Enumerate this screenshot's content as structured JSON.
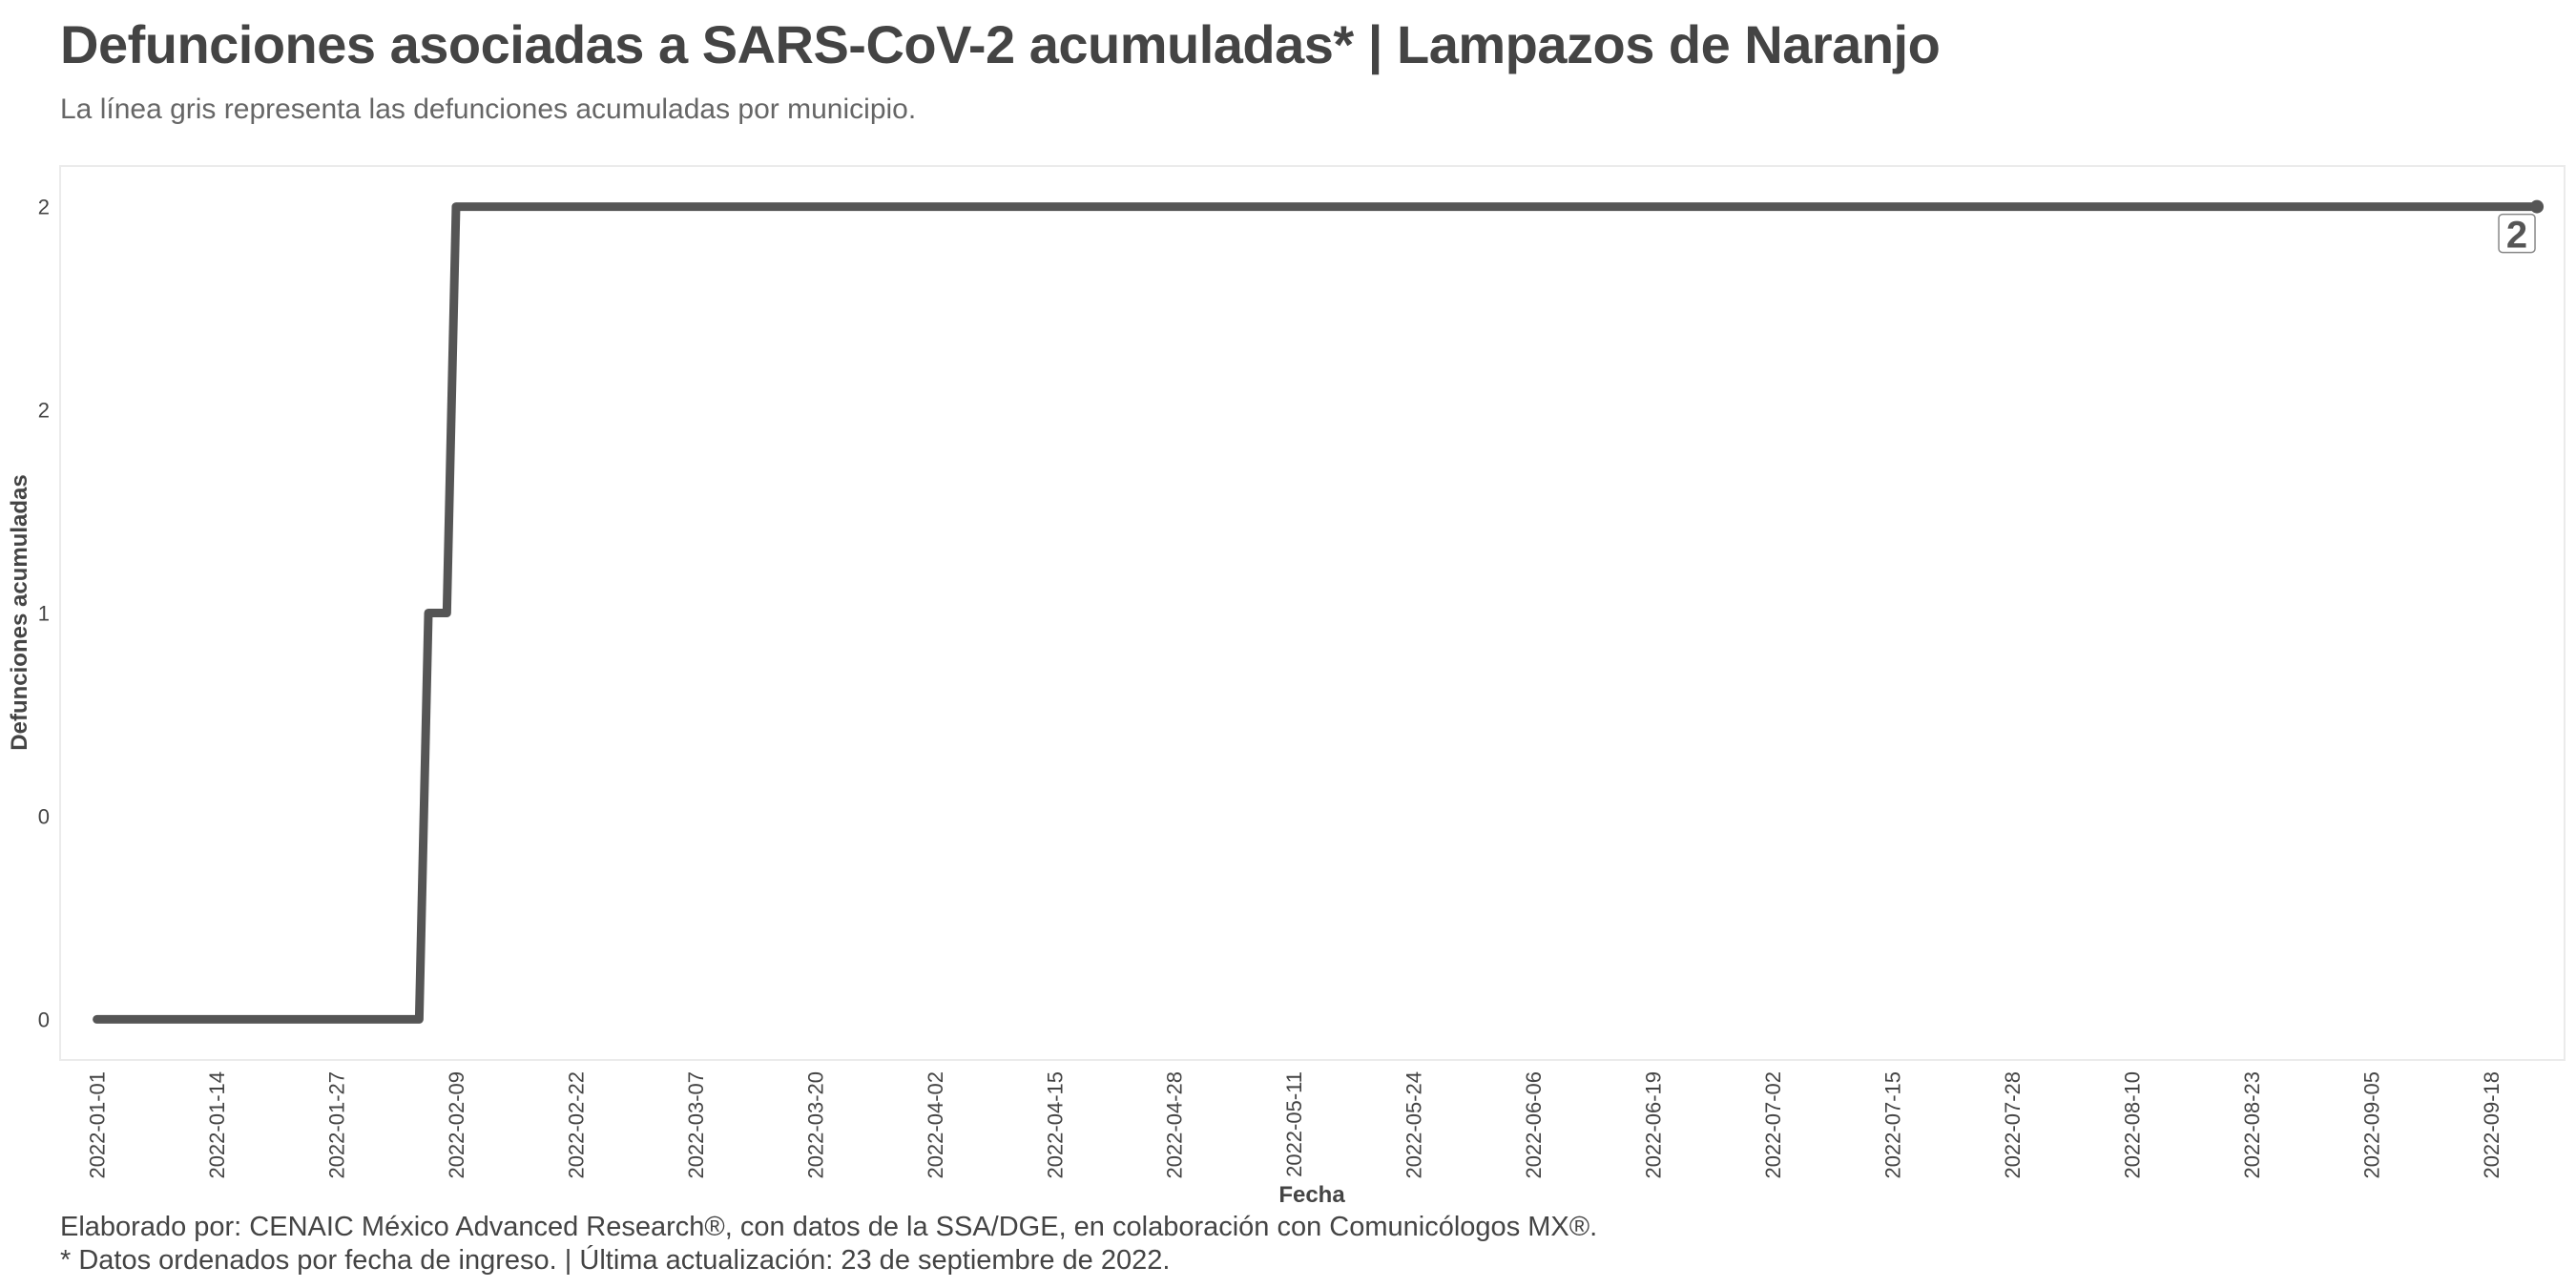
{
  "header": {
    "title": "Defunciones asociadas a SARS-CoV-2 acumuladas* | Lampazos de Naranjo",
    "subtitle": "La línea gris representa las defunciones acumuladas por municipio."
  },
  "footer": {
    "line1": "Elaborado por: CENAIC México Advanced Research®, con datos de la SSA/DGE, en colaboración con Comunicólogos MX®.",
    "line2": "* Datos ordenados por fecha de ingreso. | Última actualización: 23 de septiembre de 2022."
  },
  "chart_data": {
    "type": "line",
    "xlabel": "Fecha",
    "ylabel": "Defunciones acumuladas",
    "x_type": "date",
    "xlim": [
      "2021-12-28",
      "2022-09-26"
    ],
    "ylim": [
      -0.1,
      2.1
    ],
    "x_ticks": [
      "2022-01-01",
      "2022-01-14",
      "2022-01-27",
      "2022-02-09",
      "2022-02-22",
      "2022-03-07",
      "2022-03-20",
      "2022-04-02",
      "2022-04-15",
      "2022-04-28",
      "2022-05-11",
      "2022-05-24",
      "2022-06-06",
      "2022-06-19",
      "2022-07-02",
      "2022-07-15",
      "2022-07-28",
      "2022-08-10",
      "2022-08-23",
      "2022-09-05",
      "2022-09-18"
    ],
    "y_ticks": [
      {
        "value": 0,
        "label": "0"
      },
      {
        "value": 0.5,
        "label": "0"
      },
      {
        "value": 1,
        "label": "1"
      },
      {
        "value": 1.5,
        "label": "2"
      },
      {
        "value": 2,
        "label": "2"
      }
    ],
    "grid": false,
    "series": [
      {
        "points": [
          {
            "x": "2022-01-01",
            "y": 0
          },
          {
            "x": "2022-02-05",
            "y": 0
          },
          {
            "x": "2022-02-06",
            "y": 1
          },
          {
            "x": "2022-02-08",
            "y": 1
          },
          {
            "x": "2022-02-09",
            "y": 2
          },
          {
            "x": "2022-09-23",
            "y": 2
          }
        ],
        "color": "#555555"
      }
    ],
    "end_label": "2"
  }
}
